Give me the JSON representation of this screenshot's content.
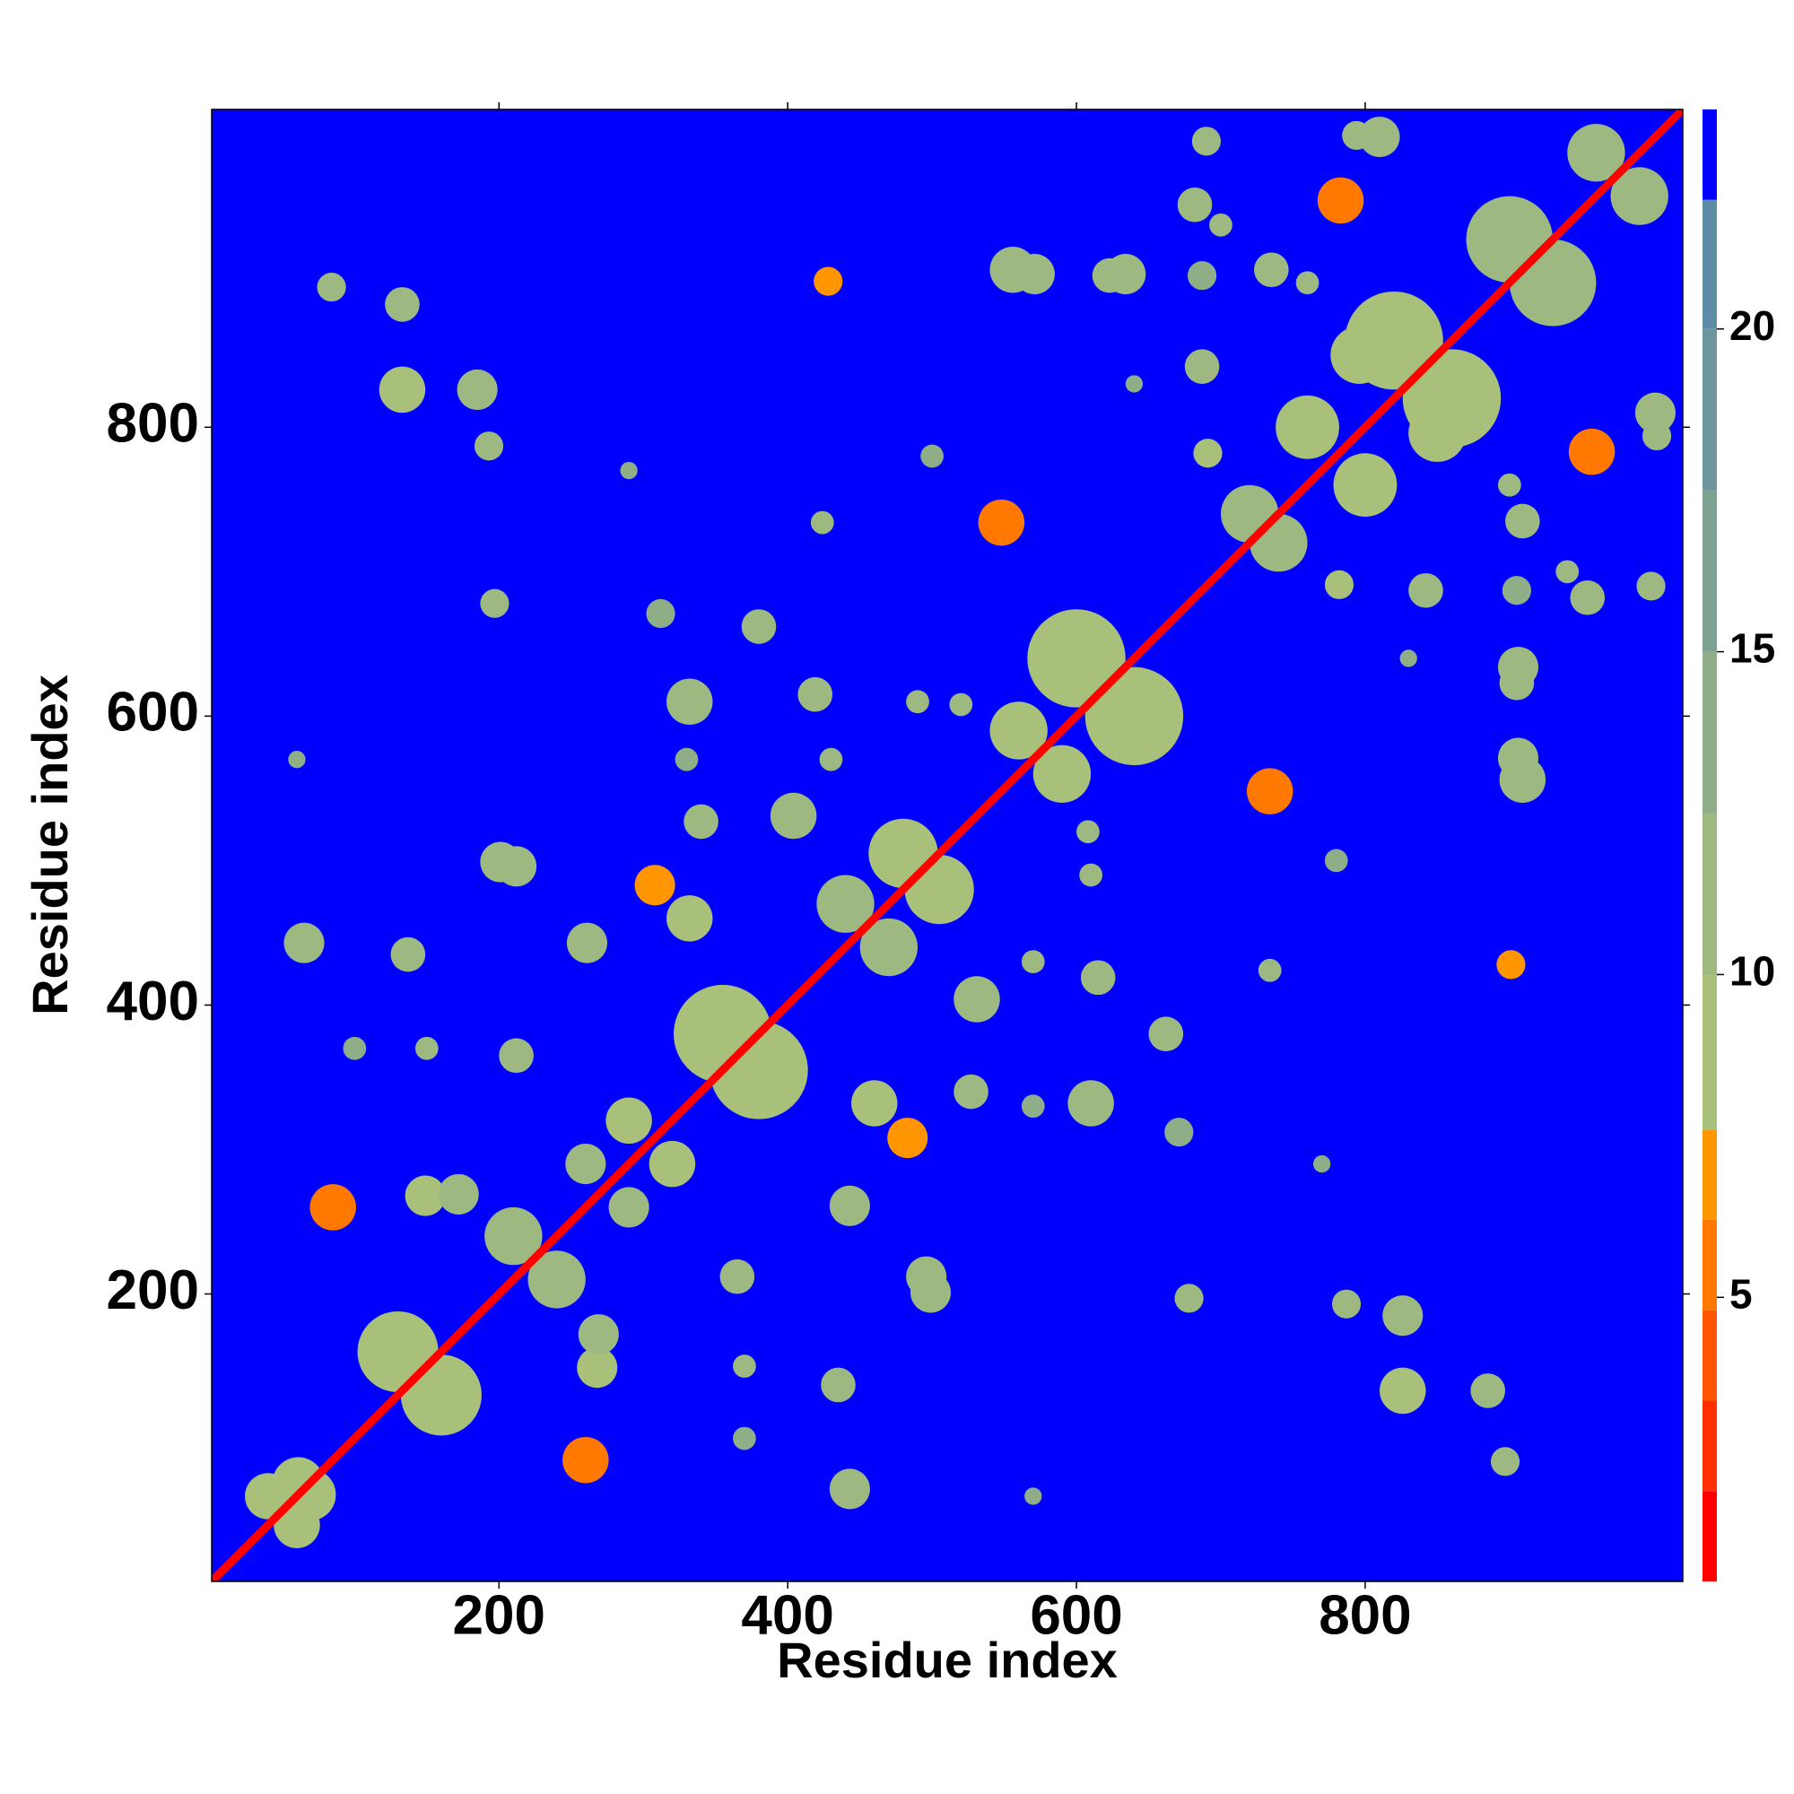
{
  "chart_data": {
    "type": "heatmap",
    "xlabel": "Residue index",
    "ylabel": "Residue index",
    "xlim": [
      1,
      1020
    ],
    "ylim": [
      1,
      1020
    ],
    "xticks": [
      200,
      400,
      600,
      800
    ],
    "yticks": [
      200,
      400,
      600,
      800
    ],
    "symmetric": true,
    "background_value": 23,
    "diagonal_value": 1,
    "clim": [
      0.6,
      23.4
    ],
    "cticks": [
      5,
      10,
      15,
      20
    ],
    "color_levels": [
      0.6,
      2.0,
      3.4,
      4.8,
      6.2,
      7.6,
      10,
      12.5,
      15,
      17.5,
      20,
      22,
      23.4
    ],
    "colors": [
      "#ff0000",
      "#ff3000",
      "#ff5500",
      "#ff7800",
      "#ff9500",
      "#a8c07a",
      "#9db880",
      "#8eae88",
      "#7ea292",
      "#6c969c",
      "#5c8ca6",
      "#0000ff"
    ],
    "contacts": {
      "x": [
        61,
        85,
        149,
        65,
        137,
        201,
        133,
        185,
        133,
        84,
        193,
        428,
        332,
        380,
        340,
        404,
        308,
        424,
        548,
        556,
        623,
        687,
        735,
        783,
        810,
        687,
        691,
        796,
        571,
        212,
        261,
        312,
        419,
        634,
        682,
        690,
        794,
        332,
        212,
        172,
        130,
        355,
        600,
        820,
        210,
        480,
        720,
        900,
        260,
        440,
        560,
        960,
        760,
        40,
        290,
        330,
        60,
        290,
        500,
        520,
        100,
        150,
        640,
        760,
        197,
        430,
        490,
        700
      ],
      "y": [
        69,
        260,
        268,
        443,
        435,
        499,
        826,
        826,
        885,
        897,
        787,
        901,
        610,
        662,
        527,
        531,
        483,
        734,
        734,
        909,
        905,
        905,
        909,
        957,
        1001,
        842,
        782,
        850,
        906,
        496,
        443,
        671,
        615,
        906,
        954,
        998,
        1002,
        460,
        365,
        269,
        160,
        380,
        640,
        860,
        240,
        505,
        740,
        930,
        290,
        470,
        590,
        990,
        800,
        60,
        320,
        570,
        570,
        770,
        780,
        608,
        370,
        370,
        830,
        900,
        678,
        570,
        610,
        940
      ],
      "size": [
        18,
        16,
        14,
        14,
        12,
        14,
        16,
        14,
        12,
        10,
        10,
        10,
        16,
        12,
        12,
        16,
        14,
        8,
        16,
        16,
        12,
        10,
        12,
        16,
        14,
        12,
        10,
        20,
        14,
        14,
        14,
        10,
        12,
        14,
        12,
        10,
        10,
        16,
        12,
        14,
        28,
        34,
        34,
        34,
        20,
        24,
        20,
        30,
        14,
        20,
        20,
        20,
        22,
        16,
        16,
        8,
        6,
        6,
        8,
        8,
        8,
        8,
        6,
        8,
        10,
        8,
        8,
        8
      ],
      "values": [
        9,
        6,
        8,
        11,
        12,
        11,
        10,
        12,
        11,
        12,
        12,
        7,
        11,
        12,
        12,
        11,
        7,
        12,
        6,
        11,
        12,
        13,
        12,
        6,
        11,
        11,
        9,
        8,
        11,
        11,
        11,
        13,
        11,
        11,
        12,
        12,
        11,
        10,
        12,
        11,
        9,
        10,
        10,
        10,
        11,
        10,
        11,
        11,
        11,
        11,
        9,
        11,
        9,
        9,
        10,
        13,
        13,
        13,
        13,
        12,
        13,
        12,
        13,
        12,
        12,
        12,
        12,
        12
      ]
    }
  }
}
